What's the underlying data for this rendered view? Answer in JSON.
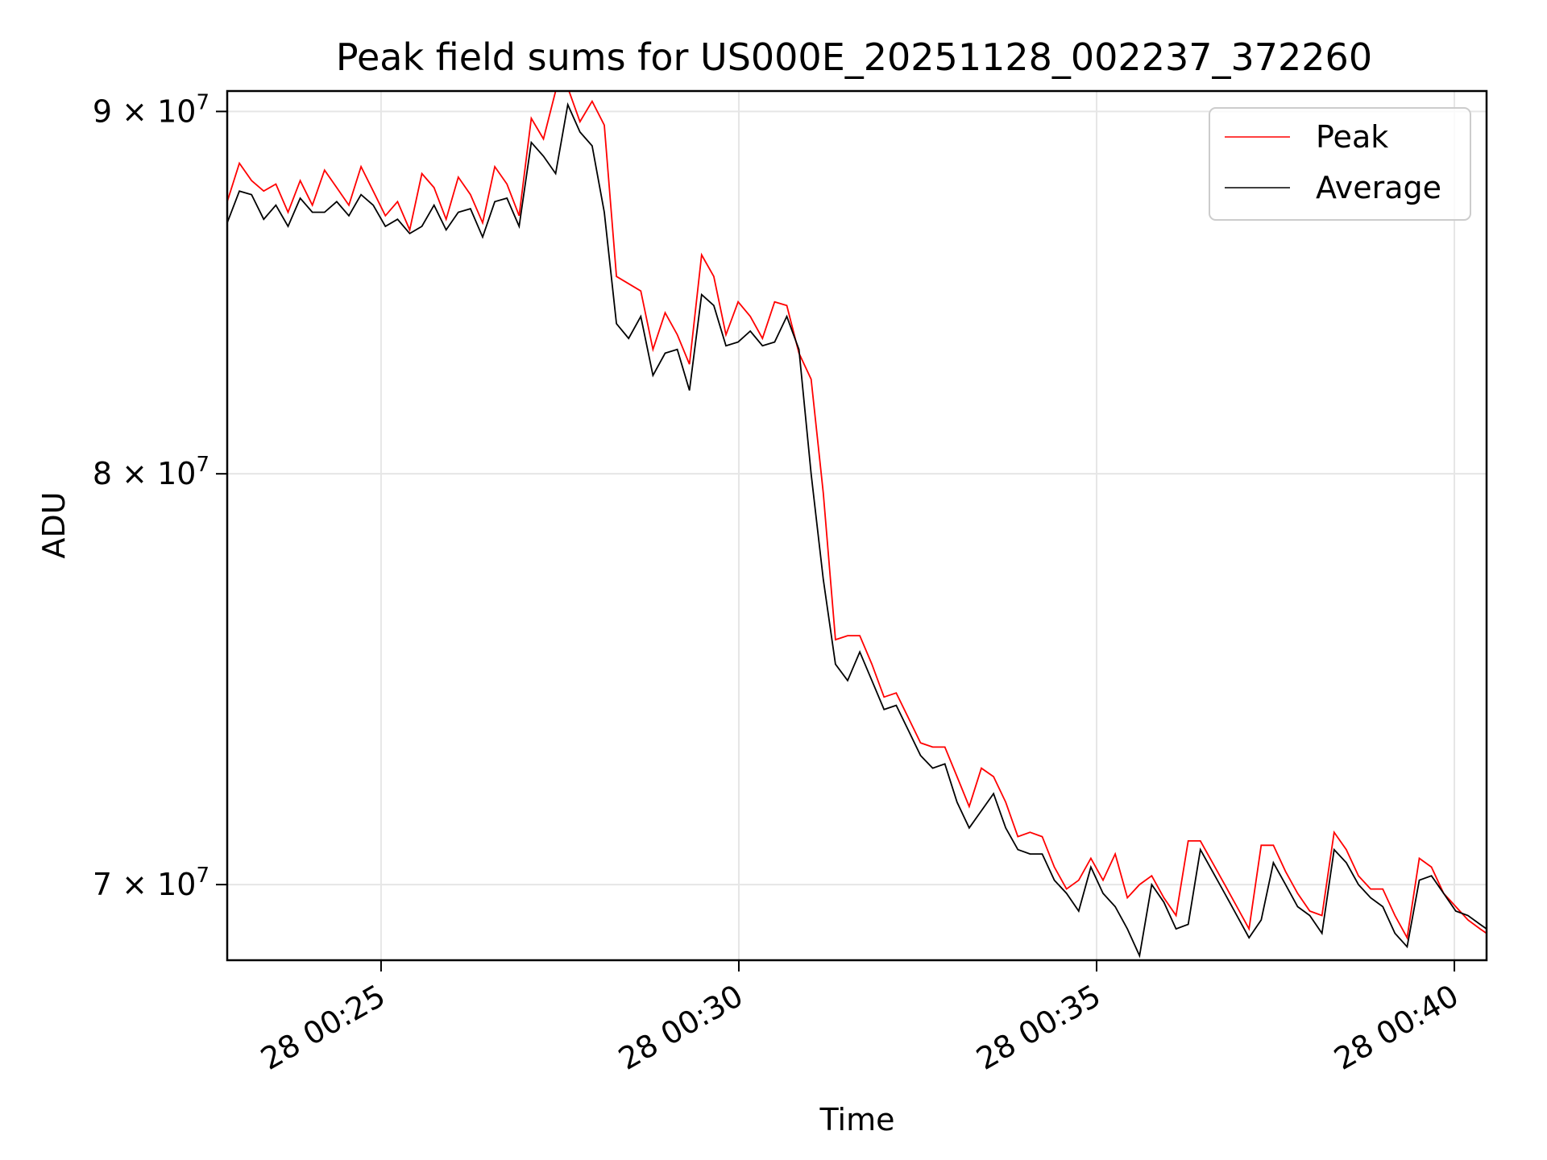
{
  "chart_data": {
    "type": "line",
    "title": "Peak field sums for US000E_20251128_002237_372260",
    "xlabel": "Time",
    "ylabel": "ADU",
    "y_scale": "log",
    "ylim": [
      68300000,
      90600000
    ],
    "xlim_minutes": [
      22.85,
      40.45
    ],
    "x_ticks": [
      {
        "minute": 25,
        "label": "28 00:25"
      },
      {
        "minute": 30,
        "label": "28 00:30"
      },
      {
        "minute": 35,
        "label": "28 00:35"
      },
      {
        "minute": 40,
        "label": "28 00:40"
      }
    ],
    "y_ticks": [
      {
        "value": 70000000,
        "mantissa": "7",
        "exponent": "7"
      },
      {
        "value": 80000000,
        "mantissa": "8",
        "exponent": "7"
      },
      {
        "value": 90000000,
        "mantissa": "9",
        "exponent": "7"
      }
    ],
    "grid": true,
    "legend_position": "top-right",
    "x_units": "minutes past 00:00 on day 28",
    "x": [
      22.85,
      23.02,
      23.19,
      23.36,
      23.53,
      23.7,
      23.87,
      24.04,
      24.21,
      24.38,
      24.55,
      24.72,
      24.89,
      25.06,
      25.23,
      25.4,
      25.57,
      25.74,
      25.91,
      26.08,
      26.25,
      26.42,
      26.59,
      26.76,
      26.93,
      27.1,
      27.27,
      27.44,
      27.61,
      27.78,
      27.95,
      28.12,
      28.29,
      28.46,
      28.63,
      28.8,
      28.97,
      29.14,
      29.31,
      29.48,
      29.65,
      29.82,
      29.99,
      30.16,
      30.33,
      30.5,
      30.67,
      30.84,
      31.01,
      31.18,
      31.35,
      31.52,
      31.69,
      31.86,
      32.03,
      32.2,
      32.37,
      32.54,
      32.71,
      32.88,
      33.05,
      33.22,
      33.39,
      33.56,
      33.73,
      33.9,
      34.07,
      34.24,
      34.41,
      34.58,
      34.75,
      34.92,
      35.09,
      35.26,
      35.43,
      35.6,
      35.77,
      35.94,
      36.11,
      36.28,
      36.45,
      36.62,
      36.79,
      36.96,
      37.13,
      37.3,
      37.47,
      37.64,
      37.81,
      37.98,
      38.15,
      38.32,
      38.49,
      38.66,
      38.83,
      39.0,
      39.17,
      39.34,
      39.51,
      39.68,
      39.85,
      40.02,
      40.19,
      40.36,
      40.45
    ],
    "series": [
      {
        "name": "Peak",
        "color": "#ff0000",
        "values": [
          87400000,
          88500000,
          88000000,
          87700000,
          87900000,
          87100000,
          88000000,
          87300000,
          88300000,
          87800000,
          87300000,
          88400000,
          87700000,
          87000000,
          87400000,
          86600000,
          88200000,
          87800000,
          86900000,
          88100000,
          87600000,
          86800000,
          88400000,
          87900000,
          87000000,
          89800000,
          89200000,
          90600000,
          90700000,
          89700000,
          90300000,
          89600000,
          85300000,
          85100000,
          84900000,
          83300000,
          84300000,
          83700000,
          82900000,
          85900000,
          85300000,
          83700000,
          84600000,
          84200000,
          83600000,
          84600000,
          84500000,
          83200000,
          82500000,
          79500000,
          75800000,
          75900000,
          75900000,
          75200000,
          74400000,
          74500000,
          73900000,
          73300000,
          73200000,
          73200000,
          72500000,
          71800000,
          72700000,
          72500000,
          71900000,
          71100000,
          71200000,
          71100000,
          70400000,
          69900000,
          70100000,
          70600000,
          70100000,
          70700000,
          69700000,
          70000000,
          70200000,
          69700000,
          69300000,
          71000000,
          71000000,
          70500000,
          70000000,
          69500000,
          69000000,
          70900000,
          70900000,
          70300000,
          69800000,
          69400000,
          69300000,
          71200000,
          70800000,
          70200000,
          69900000,
          69900000,
          69300000,
          68800000,
          70600000,
          70400000,
          69800000,
          69500000,
          69200000,
          69000000,
          68900000
        ]
      },
      {
        "name": "Average",
        "color": "#000000",
        "values": [
          86800000,
          87700000,
          87600000,
          86900000,
          87300000,
          86700000,
          87500000,
          87100000,
          87100000,
          87400000,
          87000000,
          87600000,
          87300000,
          86700000,
          86900000,
          86500000,
          86700000,
          87300000,
          86600000,
          87100000,
          87200000,
          86400000,
          87400000,
          87500000,
          86700000,
          89100000,
          88700000,
          88200000,
          90200000,
          89400000,
          89000000,
          87100000,
          84000000,
          83600000,
          84200000,
          82600000,
          83200000,
          83300000,
          82200000,
          84800000,
          84500000,
          83400000,
          83500000,
          83800000,
          83400000,
          83500000,
          84200000,
          83300000,
          80000000,
          77300000,
          75200000,
          74800000,
          75500000,
          74800000,
          74100000,
          74200000,
          73600000,
          73000000,
          72700000,
          72800000,
          71900000,
          71300000,
          71700000,
          72100000,
          71300000,
          70800000,
          70700000,
          70700000,
          70100000,
          69800000,
          69400000,
          70400000,
          69800000,
          69500000,
          69000000,
          68400000,
          70000000,
          69600000,
          69000000,
          69100000,
          70800000,
          70300000,
          69800000,
          69300000,
          68800000,
          69200000,
          70500000,
          70000000,
          69500000,
          69300000,
          68900000,
          70800000,
          70500000,
          70000000,
          69700000,
          69500000,
          68900000,
          68600000,
          70100000,
          70200000,
          69800000,
          69400000,
          69300000,
          69100000,
          69000000
        ]
      }
    ]
  }
}
